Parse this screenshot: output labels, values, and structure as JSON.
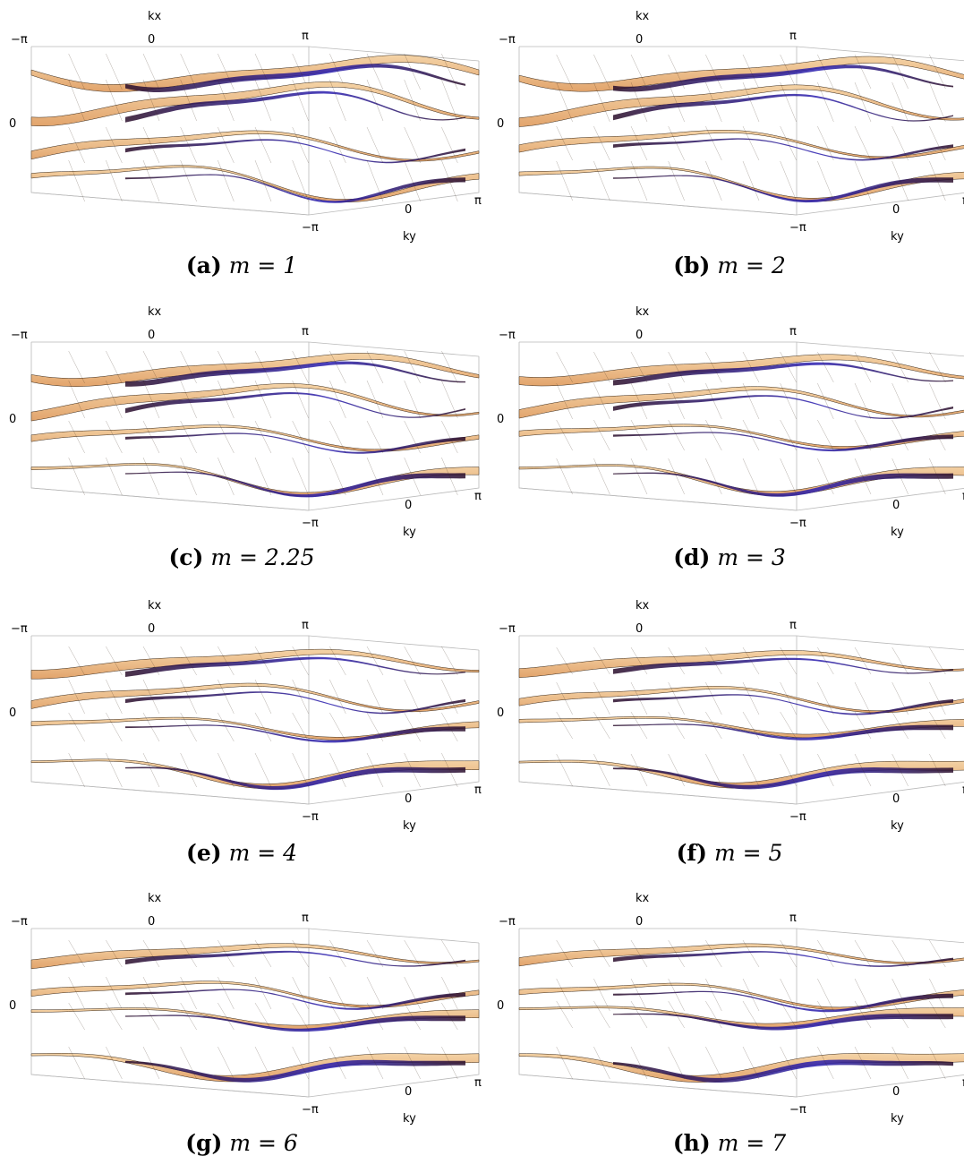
{
  "figure": {
    "axis_labels": {
      "kx": "kx",
      "ky": "ky"
    },
    "ticks": {
      "neg_pi": "−π",
      "zero": "0",
      "pi": "π",
      "energy_zero": "0"
    },
    "colors": {
      "surface_light": "#f4d3a6",
      "surface_mid": "#e2a46c",
      "surface_dark": "#2a0d2a",
      "surface_blue": "#2b1fb0",
      "mesh": "#3b2a1a",
      "box": "#b9b9b9"
    },
    "panels": [
      {
        "letter": "(a)",
        "equation": "m = 1"
      },
      {
        "letter": "(b)",
        "equation": "m = 2"
      },
      {
        "letter": "(c)",
        "equation": "m = 2.25"
      },
      {
        "letter": "(d)",
        "equation": "m = 3"
      },
      {
        "letter": "(e)",
        "equation": "m = 4"
      },
      {
        "letter": "(f)",
        "equation": "m = 5"
      },
      {
        "letter": "(g)",
        "equation": "m = 6"
      },
      {
        "letter": "(h)",
        "equation": "m = 7"
      }
    ]
  }
}
